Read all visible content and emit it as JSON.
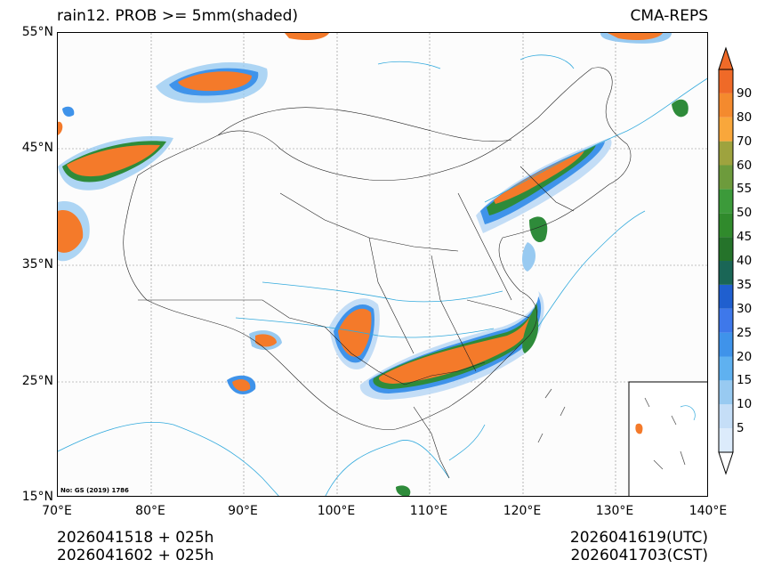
{
  "title": {
    "left": "rain12. PROB >= 5mm(shaded)",
    "right": "CMA-REPS"
  },
  "axes": {
    "lat_labels": [
      "55°N",
      "45°N",
      "35°N",
      "25°N",
      "15°N"
    ],
    "lon_labels": [
      "70°E",
      "80°E",
      "90°E",
      "100°E",
      "110°E",
      "120°E",
      "130°E",
      "140°E"
    ],
    "lat_range": [
      15,
      55
    ],
    "lon_range": [
      70,
      140
    ]
  },
  "colorbar": {
    "ticks": [
      "5",
      "10",
      "15",
      "20",
      "25",
      "30",
      "35",
      "40",
      "45",
      "50",
      "55",
      "60",
      "70",
      "80",
      "90"
    ],
    "colors": [
      "#dcebfb",
      "#c5def7",
      "#98caf1",
      "#5fb1f0",
      "#3f93ea",
      "#3e78ea",
      "#1f5fcf",
      "#1a6656",
      "#25732a",
      "#308a2c",
      "#3c9a3a",
      "#6d9b3c",
      "#9ea33e",
      "#f9a73b",
      "#f48a2e",
      "#ef6a28"
    ]
  },
  "footer": {
    "left_line1": "2026041518  +  025h",
    "left_line2": "2026041602  +  025h",
    "right_line1": "2026041619(UTC)",
    "right_line2": "2026041703(CST)"
  },
  "watermark": "No: GS (2019) 1786",
  "colors": {
    "high": "#f47a2a",
    "mid": "#2e8b3a",
    "low": "#3a7fe0",
    "faint": "#bcd9f5",
    "river": "#33aadd",
    "border": "#222222"
  }
}
